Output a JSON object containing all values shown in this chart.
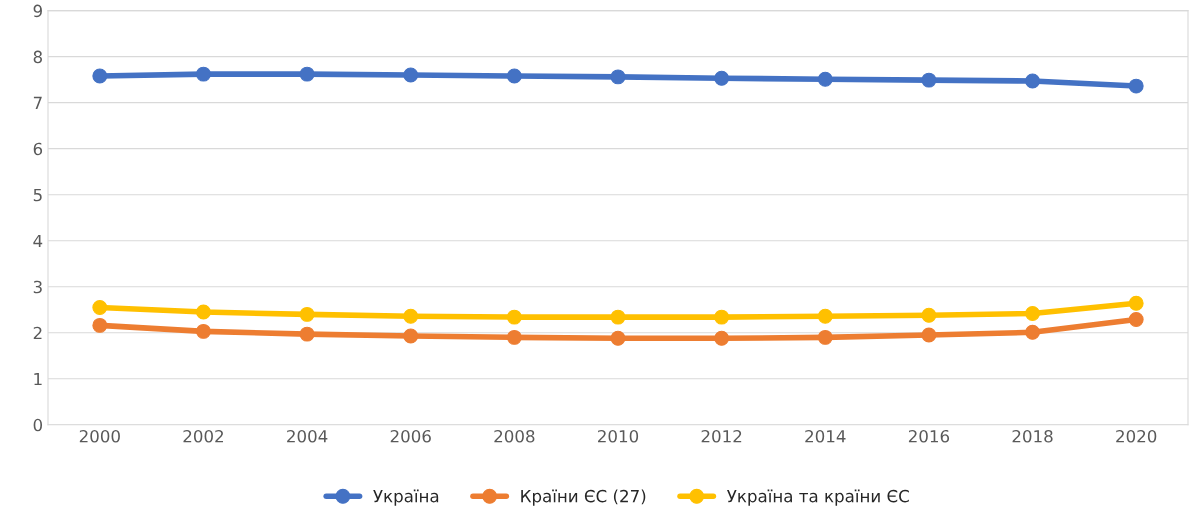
{
  "chart_data": {
    "type": "line",
    "categories": [
      "2000",
      "2002",
      "2004",
      "2006",
      "2008",
      "2010",
      "2012",
      "2014",
      "2016",
      "2018",
      "2020"
    ],
    "series": [
      {
        "name": "Україна",
        "color": "#4472c4",
        "values": [
          7.58,
          7.62,
          7.62,
          7.6,
          7.58,
          7.56,
          7.53,
          7.51,
          7.49,
          7.47,
          7.36
        ]
      },
      {
        "name": "Країни ЄС (27)",
        "color": "#ed7d31",
        "values": [
          2.16,
          2.03,
          1.97,
          1.93,
          1.9,
          1.88,
          1.88,
          1.9,
          1.95,
          2.01,
          2.29
        ]
      },
      {
        "name": "Україна та країни ЄС",
        "color": "#ffc000",
        "values": [
          2.55,
          2.45,
          2.4,
          2.36,
          2.34,
          2.34,
          2.34,
          2.36,
          2.38,
          2.42,
          2.64
        ]
      }
    ],
    "ylim": [
      0,
      9
    ],
    "yticks": [
      0,
      1,
      2,
      3,
      4,
      5,
      6,
      7,
      8,
      9
    ],
    "grid": "y",
    "legend": "bottom",
    "marker": "circle",
    "line_style": "solid"
  }
}
